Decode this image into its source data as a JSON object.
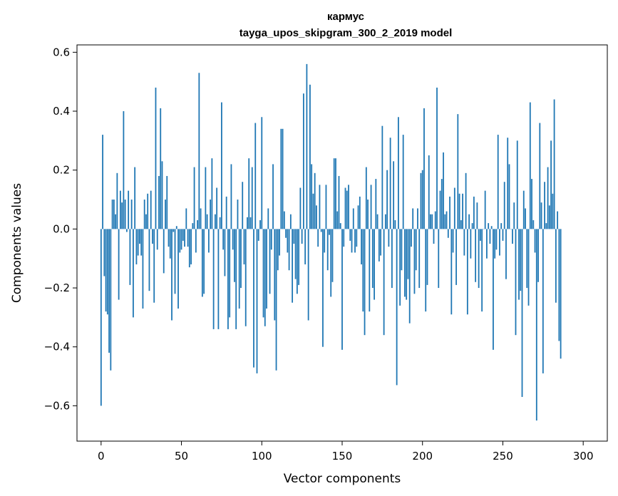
{
  "chart_data": {
    "type": "bar",
    "title": [
      "кармус",
      "tayga_upos_skipgram_300_2_2019 model"
    ],
    "xlabel": "Vector components",
    "ylabel": "Components values",
    "xlim": [
      -15,
      315
    ],
    "ylim": [
      -0.72,
      0.625
    ],
    "xticks": [
      0,
      50,
      100,
      150,
      200,
      250,
      300
    ],
    "yticks": [
      -0.6,
      -0.4,
      -0.2,
      0.0,
      0.2,
      0.4,
      0.6
    ],
    "xtick_labels": [
      "0",
      "50",
      "100",
      "150",
      "200",
      "250",
      "300"
    ],
    "ytick_labels": [
      "−0.6",
      "−0.4",
      "−0.2",
      "0.0",
      "0.2",
      "0.4",
      "0.6"
    ],
    "bar_color": "#1f77b4",
    "grid": false,
    "values": [
      -0.6,
      0.32,
      -0.16,
      -0.28,
      -0.29,
      -0.42,
      -0.48,
      0.1,
      0.1,
      0.05,
      0.19,
      -0.24,
      0.13,
      0.09,
      0.4,
      0.1,
      -0.01,
      0.13,
      -0.19,
      0.1,
      -0.3,
      0.21,
      -0.12,
      -0.09,
      -0.05,
      -0.09,
      -0.27,
      0.1,
      0.05,
      0.12,
      -0.21,
      0.13,
      -0.05,
      -0.25,
      0.48,
      -0.07,
      0.18,
      0.41,
      0.23,
      -0.15,
      0.1,
      0.18,
      -0.06,
      -0.1,
      -0.31,
      -0.01,
      -0.22,
      0.01,
      -0.27,
      -0.08,
      -0.07,
      -0.04,
      -0.06,
      0.07,
      -0.06,
      -0.13,
      -0.12,
      0.02,
      0.21,
      -0.08,
      0.03,
      0.53,
      0.07,
      -0.23,
      -0.22,
      0.21,
      0.05,
      -0.08,
      0.1,
      0.24,
      -0.34,
      0.05,
      0.14,
      -0.34,
      0.04,
      0.43,
      -0.07,
      -0.16,
      0.11,
      -0.34,
      -0.3,
      0.22,
      -0.07,
      -0.18,
      -0.34,
      0.1,
      -0.27,
      -0.2,
      0.16,
      -0.12,
      -0.33,
      0.04,
      0.24,
      0.04,
      0.21,
      -0.47,
      0.36,
      -0.49,
      -0.04,
      0.03,
      0.38,
      -0.3,
      -0.33,
      -0.27,
      0.07,
      -0.22,
      -0.07,
      0.22,
      -0.31,
      -0.48,
      -0.14,
      -0.09,
      0.34,
      0.34,
      0.06,
      -0.03,
      -0.08,
      -0.14,
      0.05,
      -0.25,
      -0.05,
      -0.17,
      -0.22,
      -0.19,
      0.14,
      -0.05,
      0.46,
      -0.12,
      0.56,
      -0.31,
      0.49,
      0.22,
      0.12,
      0.19,
      0.08,
      -0.06,
      0.15,
      -0.01,
      -0.4,
      -0.08,
      0.15,
      -0.14,
      -0.02,
      -0.23,
      -0.18,
      0.24,
      0.24,
      0.06,
      0.18,
      0.02,
      -0.41,
      -0.06,
      0.14,
      0.13,
      0.15,
      -0.04,
      -0.08,
      0.07,
      -0.08,
      -0.06,
      0.08,
      0.11,
      -0.12,
      -0.28,
      -0.36,
      0.21,
      0.1,
      -0.28,
      0.15,
      -0.2,
      -0.24,
      0.17,
      0.05,
      -0.11,
      -0.09,
      0.35,
      -0.36,
      0.05,
      0.2,
      -0.06,
      0.31,
      -0.2,
      0.23,
      0.03,
      -0.53,
      0.38,
      -0.26,
      -0.14,
      0.32,
      -0.23,
      -0.24,
      -0.17,
      -0.32,
      -0.06,
      0.07,
      -0.22,
      -0.14,
      0.07,
      -0.2,
      0.19,
      0.2,
      0.41,
      -0.28,
      -0.19,
      0.25,
      0.05,
      0.05,
      -0.05,
      0.06,
      0.48,
      -0.2,
      0.13,
      0.17,
      0.26,
      0.05,
      0.06,
      -0.03,
      0.11,
      -0.29,
      -0.08,
      0.14,
      -0.19,
      0.39,
      0.12,
      0.03,
      0.12,
      -0.09,
      0.19,
      -0.29,
      0.05,
      -0.1,
      0.02,
      0.11,
      -0.18,
      0.09,
      -0.2,
      -0.04,
      -0.28,
      0.0,
      0.13,
      -0.1,
      0.02,
      -0.05,
      0.01,
      -0.41,
      -0.1,
      -0.07,
      0.32,
      -0.09,
      0.02,
      -0.04,
      0.16,
      -0.17,
      0.31,
      0.22,
      0.0,
      -0.05,
      0.09,
      -0.36,
      0.3,
      -0.24,
      -0.21,
      -0.57,
      0.13,
      0.07,
      -0.2,
      -0.26,
      0.43,
      0.17,
      0.03,
      -0.08,
      -0.65,
      -0.18,
      0.36,
      0.09,
      -0.49,
      0.16,
      0.02,
      0.21,
      0.08,
      0.3,
      0.12,
      0.44,
      -0.25,
      0.06,
      -0.38,
      -0.44
    ]
  }
}
